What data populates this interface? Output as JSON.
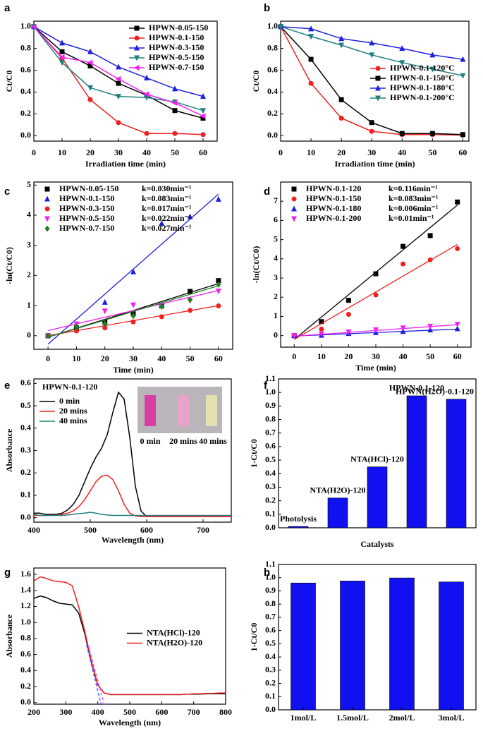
{
  "chart_data": [
    {
      "type": "line",
      "panel": "a",
      "xlabel": "Irradiation time (min)",
      "ylabel": "Ct/C0",
      "legend": "upper right",
      "x": [
        0,
        10,
        20,
        30,
        40,
        50,
        60
      ],
      "xlim": [
        0,
        65
      ],
      "xticks": [
        0,
        10,
        20,
        30,
        40,
        50,
        60
      ],
      "ylim": [
        -0.05,
        1.05
      ],
      "yticks": [
        {
          "value": 0,
          "label": "0.0"
        },
        0.2,
        0.4,
        0.6,
        0.8,
        {
          "value": 1,
          "label": "1.0"
        }
      ],
      "series": [
        {
          "name": "HPWN-0.05-150",
          "color": "#000000",
          "marker": "square",
          "values": [
            1.0,
            0.77,
            0.64,
            0.48,
            0.37,
            0.23,
            0.16
          ]
        },
        {
          "name": "HPWN-0.1-150",
          "color": "#f02020",
          "marker": "circle",
          "values": [
            1.0,
            0.71,
            0.33,
            0.12,
            0.02,
            0.02,
            0.01
          ]
        },
        {
          "name": "HPWN-0.3-150",
          "color": "#2020e0",
          "marker": "triangle",
          "values": [
            1.0,
            0.85,
            0.77,
            0.63,
            0.53,
            0.43,
            0.36
          ]
        },
        {
          "name": "HPWN-0.5-150",
          "color": "#208080",
          "marker": "triangle-down",
          "values": [
            1.0,
            0.67,
            0.44,
            0.36,
            0.35,
            0.31,
            0.23
          ]
        },
        {
          "name": "HPWN-0.7-150",
          "color": "#f020f0",
          "marker": "triangle-left",
          "values": [
            1.0,
            0.72,
            0.67,
            0.52,
            0.38,
            0.3,
            0.18
          ]
        }
      ]
    },
    {
      "type": "line",
      "panel": "b",
      "xlabel": "Irradiation time (min)",
      "ylabel": "Ct/C0",
      "legend": "center right",
      "x": [
        0,
        10,
        20,
        30,
        40,
        50,
        60
      ],
      "xlim": [
        0,
        62
      ],
      "xticks": [
        0,
        10,
        20,
        30,
        40,
        50,
        60
      ],
      "ylim": [
        -0.05,
        1.05
      ],
      "yticks": [
        {
          "value": 0,
          "label": "0.0"
        },
        0.2,
        0.4,
        0.6,
        0.8,
        {
          "value": 1,
          "label": "1.0"
        }
      ],
      "series": [
        {
          "name": "HPWN-0.1-120°C",
          "color": "#f02020",
          "marker": "circle",
          "values": [
            1.0,
            0.48,
            0.16,
            0.04,
            0.01,
            0.01,
            0.005
          ]
        },
        {
          "name": "HPWN-0.1-150°C",
          "color": "#000000",
          "marker": "square",
          "values": [
            1.0,
            0.7,
            0.33,
            0.12,
            0.02,
            0.02,
            0.01
          ]
        },
        {
          "name": "HPWN-0.1-180°C",
          "color": "#2020e0",
          "marker": "triangle",
          "values": [
            1.0,
            0.98,
            0.89,
            0.85,
            0.8,
            0.74,
            0.7
          ]
        },
        {
          "name": "HPWN-0.1-200°C",
          "color": "#208080",
          "marker": "triangle-down",
          "values": [
            1.0,
            0.91,
            0.83,
            0.74,
            0.67,
            0.61,
            0.55
          ]
        }
      ]
    },
    {
      "type": "scatter",
      "panel": "c",
      "xlabel": "Time (min)",
      "ylabel": "-ln(Ct/C0)",
      "legend": "upper left",
      "x": [
        0,
        10,
        20,
        30,
        40,
        50,
        60
      ],
      "fit_x": [
        0,
        60
      ],
      "xlim": [
        -5,
        65
      ],
      "xticks": [
        0,
        10,
        20,
        30,
        40,
        50,
        60
      ],
      "ylim": [
        -0.45,
        5.1
      ],
      "yticks": [
        0,
        1,
        2,
        3,
        4,
        5
      ],
      "series": [
        {
          "name": "HPWN-0.05-150",
          "k_label": "k=0.030min⁻¹",
          "color": "#000000",
          "marker": "square",
          "values": [
            0,
            0.26,
            0.45,
            0.73,
            0.99,
            1.47,
            1.83
          ],
          "fit": [
            -0.05,
            1.73
          ]
        },
        {
          "name": "HPWN-0.1-150",
          "k_label": "k=0.083min⁻¹",
          "color": "#2020e0",
          "marker": "triangle",
          "values": [
            0,
            0.34,
            1.11,
            2.12,
            3.73,
            3.95,
            4.53
          ],
          "fit": [
            -0.28,
            4.7
          ]
        },
        {
          "name": "HPWN-0.3-150",
          "k_label": "k=0.017min⁻¹",
          "color": "#f02020",
          "marker": "circle",
          "values": [
            0,
            0.16,
            0.26,
            0.46,
            0.63,
            0.84,
            0.99
          ],
          "fit": [
            0,
            1.0
          ]
        },
        {
          "name": "HPWN-0.5-150",
          "k_label": "k=0.022min⁻¹",
          "color": "#f020f0",
          "marker": "triangle-down",
          "values": [
            0,
            0.39,
            0.82,
            1.02,
            0.95,
            1.16,
            1.48
          ],
          "fit": [
            0.17,
            1.5
          ]
        },
        {
          "name": "HPWN-0.7-150",
          "k_label": "k=0.027min⁻¹",
          "color": "#208020",
          "marker": "diamond",
          "values": [
            0,
            0.3,
            0.4,
            0.66,
            0.97,
            1.19,
            1.7
          ],
          "fit": [
            -0.05,
            1.66
          ]
        }
      ]
    },
    {
      "type": "scatter",
      "panel": "d",
      "xlabel": "Time (min)",
      "ylabel": "-ln(Ct/C0)",
      "legend": "upper left",
      "x": [
        0,
        10,
        20,
        30,
        40,
        50,
        60
      ],
      "fit_x": [
        0,
        60
      ],
      "xlim": [
        -5,
        65
      ],
      "xticks": [
        0,
        10,
        20,
        30,
        40,
        50,
        60
      ],
      "ylim": [
        -0.6,
        8
      ],
      "yticks": [
        0,
        1,
        2,
        3,
        4,
        5,
        6,
        7
      ],
      "series": [
        {
          "name": "HPWN-0.1-120",
          "k_label": "k=0.116min⁻¹",
          "color": "#000000",
          "marker": "square",
          "values": [
            0,
            0.73,
            1.84,
            3.22,
            4.65,
            5.21,
            6.96
          ],
          "fit": [
            -0.2,
            6.8
          ]
        },
        {
          "name": "HPWN-0.1-150",
          "k_label": "k=0.083min⁻¹",
          "color": "#f02020",
          "marker": "circle",
          "values": [
            0,
            0.34,
            1.11,
            2.12,
            3.73,
            3.95,
            4.53
          ],
          "fit": [
            -0.2,
            4.75
          ]
        },
        {
          "name": "HPWN-0.1-180",
          "k_label": "k=0.006min⁻¹",
          "color": "#2020e0",
          "marker": "triangle",
          "values": [
            0,
            0.02,
            0.11,
            0.16,
            0.22,
            0.3,
            0.36
          ],
          "fit": [
            -0.02,
            0.34
          ]
        },
        {
          "name": "HPWN-0.1-200",
          "k_label": "k=0.01min⁻¹",
          "color": "#f020f0",
          "marker": "triangle-down",
          "values": [
            0,
            0.09,
            0.19,
            0.3,
            0.4,
            0.49,
            0.59
          ],
          "fit": [
            -0.03,
            0.57
          ]
        }
      ]
    },
    {
      "type": "line",
      "panel": "e",
      "annotation": "HPWN-0.1-120",
      "xlabel": "Wavelength (nm)",
      "ylabel": "Absorbance",
      "legend": "upper left",
      "inset_labels": [
        "0 min",
        "20 mins",
        "40 mins"
      ],
      "x": [
        400,
        410,
        420,
        430,
        440,
        450,
        460,
        470,
        480,
        490,
        500,
        510,
        520,
        530,
        540,
        550,
        560,
        570,
        580,
        590,
        600,
        610,
        620,
        630,
        640,
        650,
        660,
        670,
        680,
        690,
        700,
        710,
        720,
        730,
        740,
        750
      ],
      "xlim": [
        400,
        750
      ],
      "xticks": [
        400,
        500,
        600,
        700
      ],
      "ylim": [
        -0.02,
        0.62
      ],
      "yticks": [
        {
          "value": 0,
          "label": "0.0"
        },
        0.1,
        0.2,
        0.3,
        0.4,
        0.5,
        0.6
      ],
      "series": [
        {
          "name": "0 min",
          "color": "#000000",
          "values": [
            0.02,
            0.02,
            0.015,
            0.015,
            0.015,
            0.02,
            0.035,
            0.06,
            0.1,
            0.16,
            0.22,
            0.27,
            0.31,
            0.37,
            0.47,
            0.56,
            0.53,
            0.36,
            0.14,
            0.03,
            0.005,
            0.005,
            0.005,
            0.005,
            0.005,
            0.005,
            0.005,
            0.005,
            0.005,
            0.005,
            0.005,
            0.005,
            0.005,
            0.005,
            0.005,
            0.005
          ]
        },
        {
          "name": "20 mins",
          "color": "#f02020",
          "values": [
            0.01,
            0.01,
            0.01,
            0.01,
            0.01,
            0.015,
            0.02,
            0.03,
            0.05,
            0.08,
            0.12,
            0.16,
            0.185,
            0.19,
            0.17,
            0.12,
            0.06,
            0.02,
            0.008,
            0.005,
            0.005,
            0.005,
            0.005,
            0.005,
            0.005,
            0.005,
            0.005,
            0.005,
            0.005,
            0.005,
            0.005,
            0.005,
            0.005,
            0.005,
            0.005,
            0.005
          ]
        },
        {
          "name": "40 mins",
          "color": "#208080",
          "values": [
            0.015,
            0.01,
            0.01,
            0.01,
            0.01,
            0.01,
            0.012,
            0.015,
            0.018,
            0.02,
            0.024,
            0.02,
            0.015,
            0.012,
            0.01,
            0.01,
            0.01,
            0.01,
            0.01,
            0.01,
            0.01,
            0.01,
            0.01,
            0.01,
            0.01,
            0.01,
            0.01,
            0.01,
            0.01,
            0.01,
            0.01,
            0.01,
            0.01,
            0.01,
            0.01,
            0.01
          ]
        }
      ]
    },
    {
      "type": "bar",
      "panel": "f",
      "xlabel": "Catalysts",
      "ylabel": "1-Ct/C0",
      "category_labels": "above",
      "color": "#1010f0",
      "categories": [
        "Photolysis",
        "NTA(H2O)-120",
        "NTA(HCl)-120",
        "HPWN-0.1-120",
        "HPWN(H2O)-0.1-120"
      ],
      "values": [
        0.01,
        0.22,
        0.45,
        0.975,
        0.95
      ],
      "ylim": [
        0,
        1.1
      ],
      "yticks": [
        {
          "value": 0,
          "label": "0.0"
        },
        0.1,
        0.2,
        0.3,
        0.4,
        0.5,
        0.6,
        0.7,
        0.8,
        0.9,
        {
          "value": 1,
          "label": "1.0"
        },
        1.1
      ]
    },
    {
      "type": "line",
      "panel": "g",
      "xlabel": "Wavelength (nm)",
      "ylabel": "Absorbance",
      "legend": "center right",
      "x": [
        200,
        220,
        240,
        260,
        280,
        300,
        320,
        340,
        360,
        380,
        400,
        420,
        440,
        460,
        480,
        500,
        520,
        540,
        560,
        580,
        600,
        620,
        640,
        660,
        680,
        700,
        720,
        740,
        760,
        780,
        800
      ],
      "xlim": [
        200,
        800
      ],
      "xticks": [
        200,
        300,
        400,
        500,
        600,
        700,
        800
      ],
      "ylim": [
        -0.02,
        1.68
      ],
      "yticks": [
        {
          "value": 0,
          "label": "0.0"
        },
        0.2,
        0.4,
        0.6,
        0.8,
        {
          "value": 1,
          "label": "1.0"
        },
        1.2,
        1.4,
        1.6
      ],
      "series": [
        {
          "name": "NTA(HCl)-120",
          "color": "#000000",
          "values": [
            1.3,
            1.33,
            1.31,
            1.27,
            1.24,
            1.23,
            1.22,
            1.12,
            0.85,
            0.5,
            0.22,
            0.12,
            0.1,
            0.1,
            0.1,
            0.1,
            0.1,
            0.1,
            0.1,
            0.1,
            0.1,
            0.1,
            0.1,
            0.1,
            0.105,
            0.105,
            0.105,
            0.11,
            0.11,
            0.11,
            0.11
          ]
        },
        {
          "name": "NTA(H2O)-120",
          "color": "#f02020",
          "values": [
            1.52,
            1.57,
            1.55,
            1.52,
            1.51,
            1.5,
            1.46,
            1.2,
            0.88,
            0.52,
            0.22,
            0.12,
            0.1,
            0.1,
            0.1,
            0.1,
            0.1,
            0.1,
            0.1,
            0.1,
            0.1,
            0.1,
            0.1,
            0.1,
            0.105,
            0.11,
            0.11,
            0.115,
            0.115,
            0.12,
            0.12
          ]
        }
      ],
      "tangents": [
        {
          "color": "#4060ff",
          "x": [
            365,
            412
          ],
          "y": [
            0.72,
            -0.05
          ]
        },
        {
          "color": "#f060f0",
          "x": [
            370,
            422
          ],
          "y": [
            0.72,
            -0.05
          ]
        }
      ]
    },
    {
      "type": "bar",
      "panel": "h",
      "ylabel": "1-Ct/C0",
      "category_labels": "below",
      "color": "#1010f0",
      "categories": [
        "1mol/L",
        "1.5mol/L",
        "2mol/L",
        "3mol/L"
      ],
      "values": [
        0.96,
        0.975,
        0.998,
        0.968
      ],
      "ylim": [
        0,
        1.1
      ],
      "yticks": [
        {
          "value": 0,
          "label": "0.0"
        },
        0.1,
        0.2,
        0.3,
        0.4,
        0.5,
        0.6,
        0.7,
        0.8,
        0.9,
        {
          "value": 1,
          "label": "1.0"
        },
        1.1
      ]
    }
  ]
}
